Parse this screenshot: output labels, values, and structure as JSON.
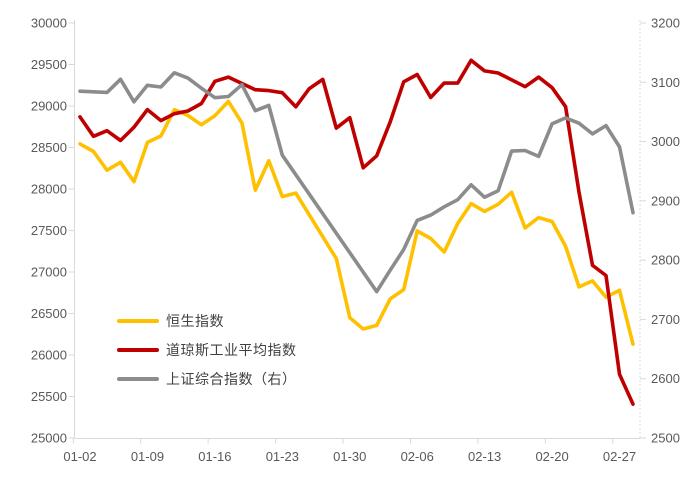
{
  "chart_data": {
    "type": "line",
    "title": "",
    "grid": false,
    "legend_position": "inside-bottom-left",
    "categories": [
      "01-02",
      "01-03",
      "01-06",
      "01-07",
      "01-08",
      "01-09",
      "01-10",
      "01-13",
      "01-14",
      "01-15",
      "01-16",
      "01-17",
      "01-20",
      "01-21",
      "01-22",
      "01-23",
      "01-24",
      "01-27",
      "01-28",
      "01-29",
      "01-30",
      "01-31",
      "02-03",
      "02-04",
      "02-05",
      "02-06",
      "02-07",
      "02-10",
      "02-11",
      "02-12",
      "02-13",
      "02-14",
      "02-17",
      "02-18",
      "02-19",
      "02-20",
      "02-21",
      "02-24",
      "02-25",
      "02-26",
      "02-27",
      "02-28"
    ],
    "x_axis": {
      "tick_labels": [
        "01-02",
        "01-09",
        "01-16",
        "01-23",
        "01-30",
        "02-06",
        "02-13",
        "02-20",
        "02-27"
      ],
      "label_every": 5
    },
    "left_axis": {
      "min": 25000,
      "max": 30000,
      "step": 500,
      "tick_labels": [
        "30000",
        "29500",
        "29000",
        "28500",
        "28000",
        "27500",
        "27000",
        "26500",
        "26000",
        "25500",
        "25000"
      ]
    },
    "right_axis": {
      "min": 2500,
      "max": 3200,
      "step": 100,
      "tick_labels": [
        "3200",
        "3100",
        "3000",
        "2900",
        "2800",
        "2700",
        "2600",
        "2500"
      ]
    },
    "series": [
      {
        "name": "恒生指数",
        "axis": "left",
        "color": "#FFC000",
        "values": [
          28543,
          28452,
          28226,
          28322,
          28088,
          28561,
          28638,
          28955,
          28885,
          28774,
          28883,
          29056,
          28796,
          27985,
          28341,
          27909,
          27950,
          null,
          null,
          27161,
          26449,
          26313,
          26357,
          26676,
          26787,
          27494,
          27404,
          27241,
          27584,
          27824,
          27730,
          27816,
          27960,
          27530,
          27656,
          27609,
          27309,
          26821,
          26893,
          26696,
          26779,
          26130
        ]
      },
      {
        "name": "道琼斯工业平均指数",
        "axis": "left",
        "color": "#C00000",
        "values": [
          28869,
          28635,
          28703,
          28584,
          28745,
          28957,
          28824,
          28907,
          28940,
          29030,
          29298,
          29348,
          null,
          29196,
          29186,
          29160,
          28990,
          29210,
          29320,
          28734,
          28859,
          28256,
          28400,
          28808,
          29291,
          29380,
          29103,
          29277,
          29276,
          29551,
          29423,
          29398,
          null,
          29232,
          29348,
          29220,
          28992,
          27961,
          27081,
          26958,
          25767,
          25409
        ]
      },
      {
        "name": "上证综合指数（右）",
        "axis": "right",
        "color": "#8C8C8C",
        "values": [
          3085,
          3084,
          3083,
          3105,
          3067,
          3095,
          3092,
          3116,
          3107,
          3090,
          3074,
          3076,
          3096,
          3052,
          3061,
          2977,
          null,
          null,
          null,
          null,
          null,
          null,
          2747,
          2783,
          2818,
          2867,
          2876,
          2890,
          2902,
          2927,
          2906,
          2917,
          2984,
          2985,
          2975,
          3030,
          3040,
          3031,
          3013,
          3027,
          2991,
          2880
        ]
      }
    ],
    "style": {
      "axis_line_color": "#D9D9D9",
      "tick_text_color": "#595959",
      "legend_text_color": "#404040",
      "line_width": 3.6
    }
  }
}
